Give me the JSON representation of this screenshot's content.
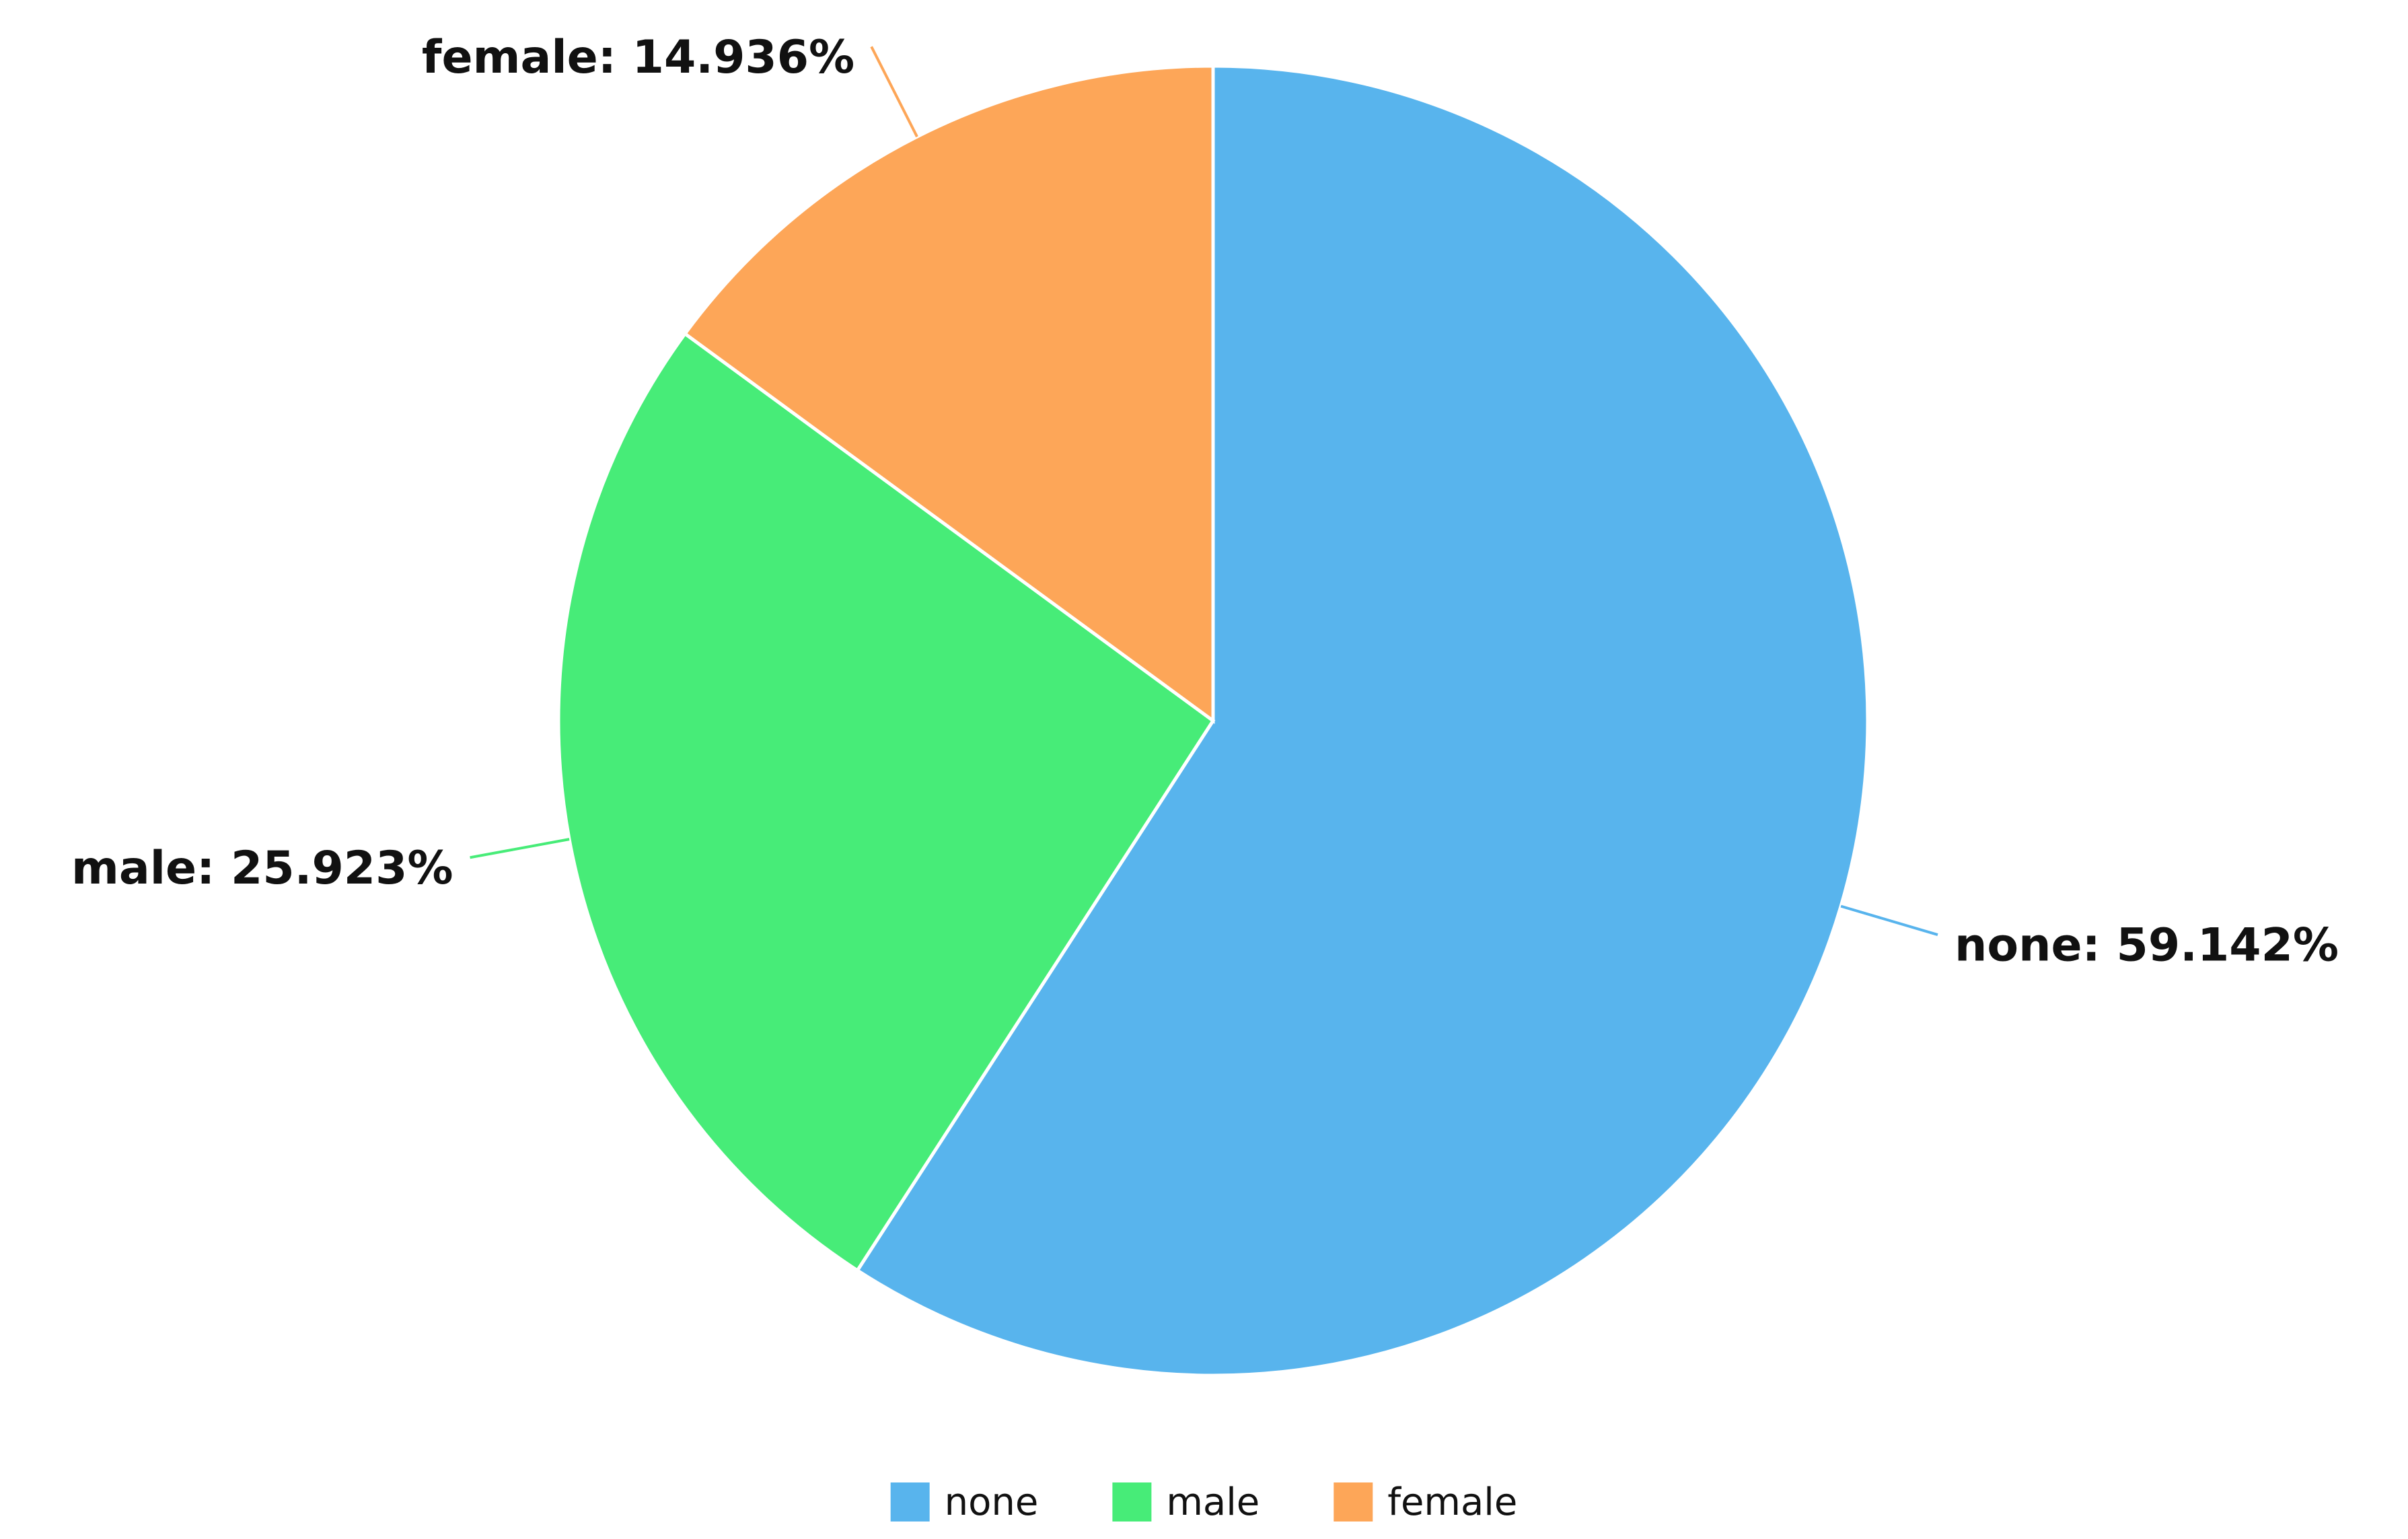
{
  "chart_data": {
    "type": "pie",
    "categories": [
      "none",
      "male",
      "female"
    ],
    "values": [
      59.142,
      25.923,
      14.936
    ],
    "value_labels": [
      "none: 59.142%",
      "male: 25.923%",
      "female: 14.936%"
    ],
    "colors": [
      "#58b4ed",
      "#47ec78",
      "#fda658"
    ],
    "legend": "bottom"
  }
}
